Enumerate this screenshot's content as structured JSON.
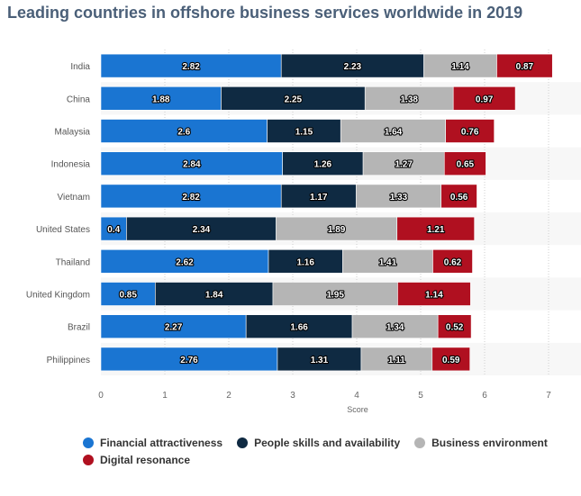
{
  "chart_data": {
    "type": "bar",
    "orientation": "horizontal",
    "stacked": true,
    "title": "Leading countries in offshore business services worldwide in 2019",
    "xlabel": "Score",
    "ylabel": "",
    "xlim": [
      0,
      7
    ],
    "x_ticks": [
      "0",
      "1",
      "2",
      "3",
      "4",
      "5",
      "6",
      "7"
    ],
    "grid": true,
    "legend_position": "bottom",
    "categories": [
      "India",
      "China",
      "Malaysia",
      "Indonesia",
      "Vietnam",
      "United States",
      "Thailand",
      "United Kingdom",
      "Brazil",
      "Philippines"
    ],
    "series": [
      {
        "name": "Financial attractiveness",
        "color": "#1a75d2",
        "values": [
          2.82,
          1.88,
          2.6,
          2.84,
          2.82,
          0.4,
          2.62,
          0.85,
          2.27,
          2.76
        ]
      },
      {
        "name": "People skills and availability",
        "color": "#0f2a42",
        "values": [
          2.23,
          2.25,
          1.15,
          1.26,
          1.17,
          2.34,
          1.16,
          1.84,
          1.66,
          1.31
        ]
      },
      {
        "name": "Business environment",
        "color": "#b5b5b5",
        "values": [
          1.14,
          1.38,
          1.64,
          1.27,
          1.33,
          1.89,
          1.41,
          1.95,
          1.34,
          1.11
        ]
      },
      {
        "name": "Digital resonance",
        "color": "#b01020",
        "values": [
          0.87,
          0.97,
          0.76,
          0.65,
          0.56,
          1.21,
          0.62,
          1.14,
          0.52,
          0.59
        ]
      }
    ]
  }
}
